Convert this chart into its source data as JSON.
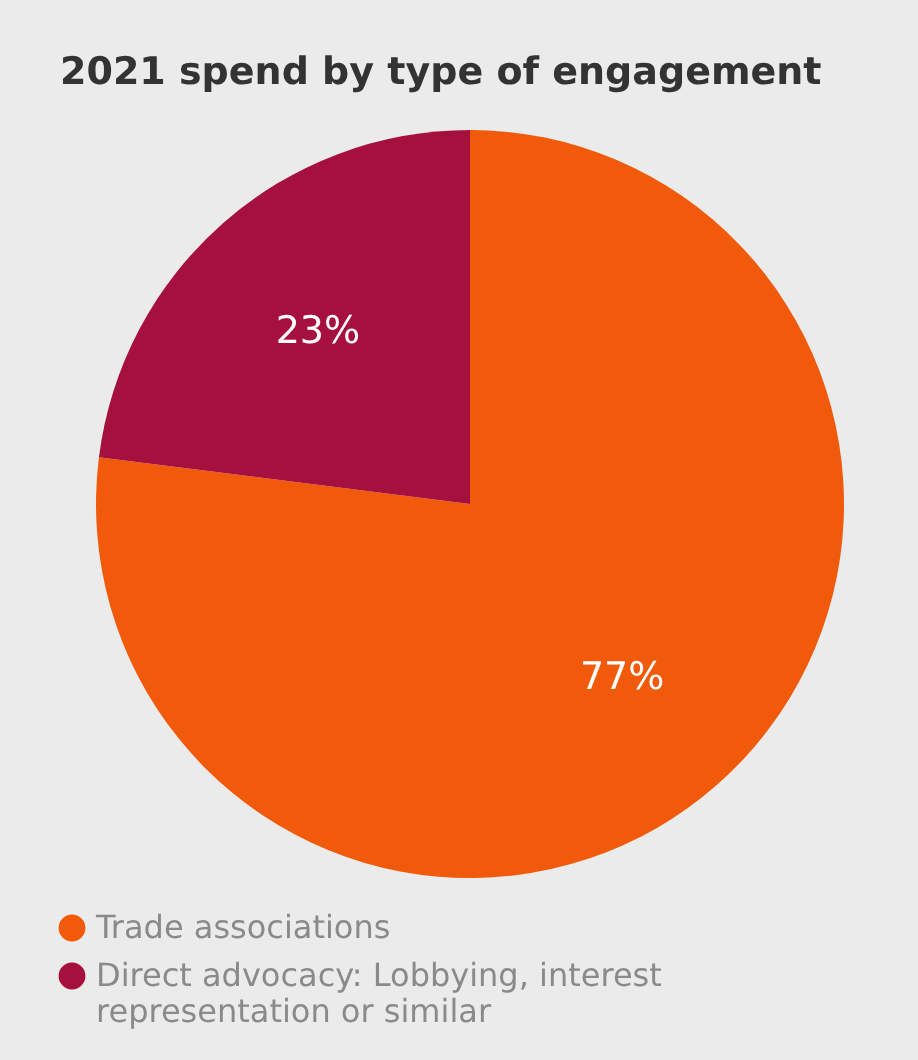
{
  "chart_data": {
    "type": "pie",
    "title": "2021 spend by type of engagement",
    "categories": [
      "Trade associations",
      "Direct advocacy: Lobbying, interest representation or similar"
    ],
    "values": [
      77,
      23
    ],
    "colors": [
      "#f15a0a",
      "#a6103f"
    ],
    "value_labels": [
      "77%",
      "23%"
    ],
    "legend": "bottom left"
  }
}
